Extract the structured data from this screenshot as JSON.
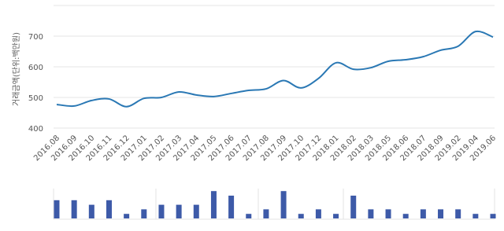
{
  "chart_data": [
    {
      "type": "line",
      "y_label": "거래금액(단위:백만원)",
      "categories": [
        "2016.08",
        "2016.09",
        "2016.10",
        "2016.11",
        "2016.12",
        "2017.01",
        "2017.02",
        "2017.03",
        "2017.04",
        "2017.05",
        "2017.06",
        "2017.07",
        "2017.08",
        "2017.09",
        "2017.10",
        "2017.12",
        "2018.01",
        "2018.02",
        "2018.03",
        "2018.05",
        "2018.06",
        "2018.07",
        "2018.09",
        "2019.02",
        "2019.04",
        "2019.06"
      ],
      "values": [
        477,
        472,
        490,
        495,
        470,
        497,
        500,
        518,
        508,
        503,
        513,
        523,
        528,
        555,
        531,
        562,
        613,
        592,
        597,
        618,
        623,
        633,
        654,
        667,
        715,
        697
      ],
      "color": "#2a78b4",
      "ylim": [
        400,
        800
      ],
      "yticks": [
        400,
        500,
        600,
        700
      ],
      "grid": true
    },
    {
      "type": "bar",
      "values": [
        4,
        4,
        3,
        4,
        1,
        2,
        3,
        3,
        3,
        6,
        5,
        1,
        2,
        6,
        1,
        2,
        1,
        5,
        2,
        2,
        1,
        2,
        2,
        2,
        1,
        1
      ],
      "color": "#3d5aa8"
    }
  ]
}
